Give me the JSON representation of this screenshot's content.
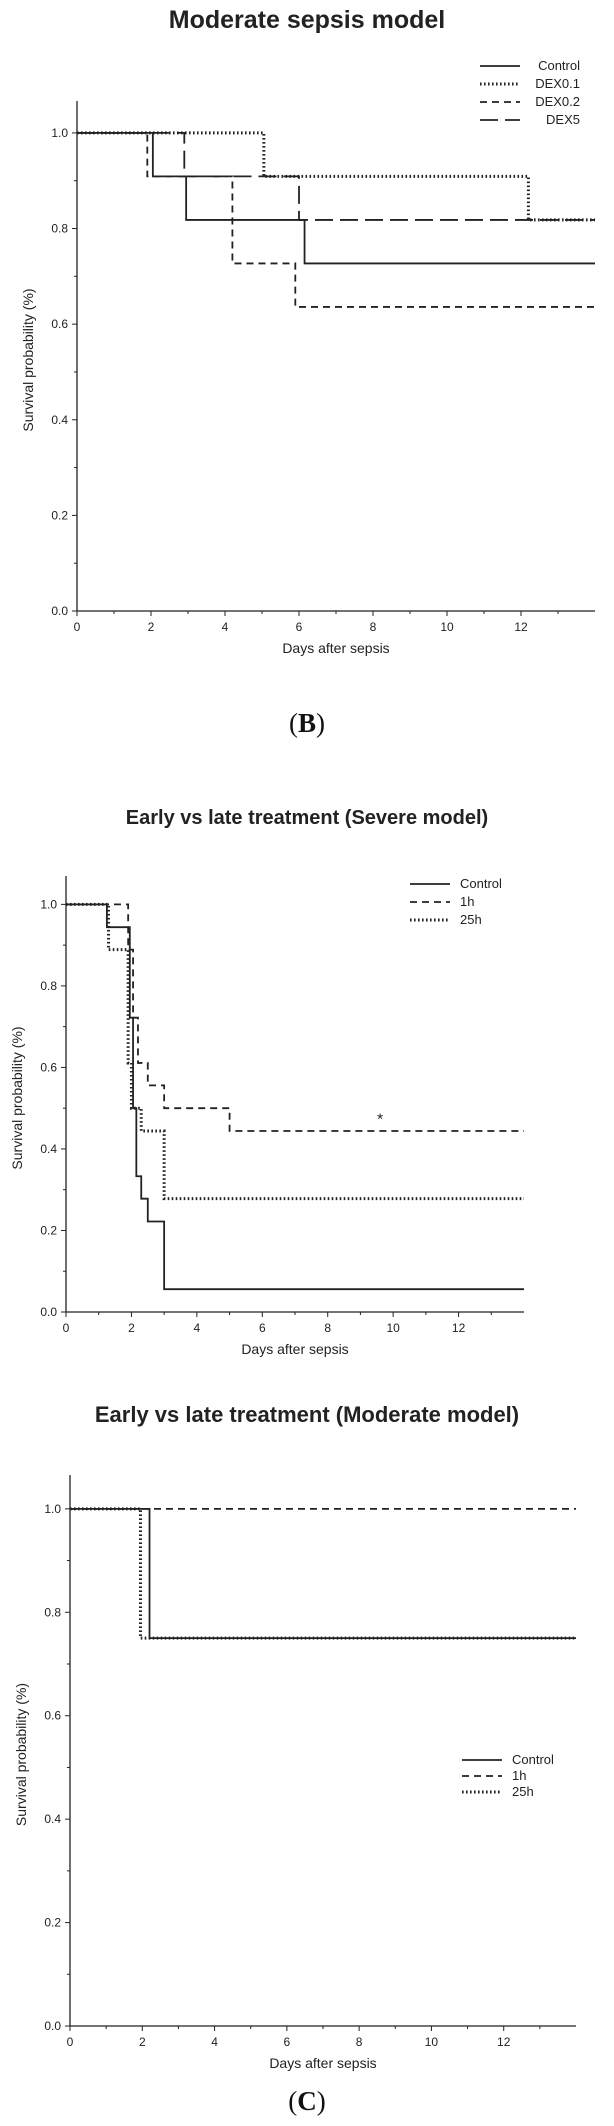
{
  "chart_data": [
    {
      "type": "line",
      "step": true,
      "title": "Moderate sepsis model",
      "xlabel": "Days after sepsis",
      "ylabel": "Survival probability (%)",
      "xlim": [
        0,
        14
      ],
      "ylim": [
        0,
        1.05
      ],
      "xticks": [
        "0",
        "2",
        "4",
        "6",
        "8",
        "10",
        "12"
      ],
      "yticks": [
        "0.0",
        "0.2",
        "0.4",
        "0.6",
        "0.8",
        "1.0"
      ],
      "legend_position": "top-right",
      "annotations": [],
      "series": [
        {
          "name": "Control",
          "style": "solid",
          "x": [
            0,
            2.05,
            2.95,
            6.15,
            14
          ],
          "y": [
            1.0,
            0.909,
            0.818,
            0.727,
            0.727
          ]
        },
        {
          "name": "DEX0.1",
          "style": "dotted",
          "x": [
            0,
            5.05,
            12.2,
            14
          ],
          "y": [
            1.0,
            0.909,
            0.818,
            0.818
          ]
        },
        {
          "name": "DEX0.2",
          "style": "dashed",
          "x": [
            0,
            1.9,
            4.2,
            5.9,
            14
          ],
          "y": [
            1.0,
            0.909,
            0.727,
            0.636,
            0.636
          ]
        },
        {
          "name": "DEX5",
          "style": "longdash",
          "x": [
            0,
            2.9,
            5.1,
            6.0,
            14
          ],
          "y": [
            1.0,
            0.909,
            0.909,
            0.818,
            0.818
          ]
        }
      ]
    },
    {
      "type": "line",
      "step": true,
      "title": "Early vs late treatment (Severe model)",
      "xlabel": "Days after sepsis",
      "ylabel": "Survival probability (%)",
      "xlim": [
        0,
        14
      ],
      "ylim": [
        0,
        1.05
      ],
      "xticks": [
        "0",
        "2",
        "4",
        "6",
        "8",
        "10",
        "12"
      ],
      "yticks": [
        "0.0",
        "0.2",
        "0.4",
        "0.6",
        "0.8",
        "1.0"
      ],
      "legend_position": "top-right",
      "annotations": [
        {
          "text": "*",
          "x": 9.6,
          "y": 0.46
        }
      ],
      "series": [
        {
          "name": "Control",
          "style": "solid",
          "x": [
            0,
            1.25,
            1.95,
            2.05,
            2.15,
            2.3,
            2.5,
            3.0,
            14
          ],
          "y": [
            1.0,
            0.944,
            0.722,
            0.5,
            0.333,
            0.278,
            0.222,
            0.056,
            0.056
          ]
        },
        {
          "name": "1h",
          "style": "dashed",
          "x": [
            0,
            1.9,
            2.05,
            2.2,
            2.5,
            3.0,
            5.0,
            14
          ],
          "y": [
            1.0,
            0.889,
            0.722,
            0.611,
            0.556,
            0.5,
            0.444,
            0.444
          ]
        },
        {
          "name": "25h",
          "style": "dotted",
          "x": [
            0,
            1.3,
            1.9,
            2.0,
            2.3,
            3.0,
            14
          ],
          "y": [
            1.0,
            0.889,
            0.611,
            0.5,
            0.444,
            0.278,
            0.278
          ]
        }
      ]
    },
    {
      "type": "line",
      "step": true,
      "title": "Early vs late treatment (Moderate model)",
      "xlabel": "Days after sepsis",
      "ylabel": "Survival probability (%)",
      "xlim": [
        0,
        14
      ],
      "ylim": [
        0,
        1.05
      ],
      "xticks": [
        "0",
        "2",
        "4",
        "6",
        "8",
        "10",
        "12"
      ],
      "yticks": [
        "0.0",
        "0.2",
        "0.4",
        "0.6",
        "0.8",
        "1.0"
      ],
      "legend_position": "right",
      "annotations": [],
      "series": [
        {
          "name": "Control",
          "style": "solid",
          "x": [
            0,
            2.2,
            14
          ],
          "y": [
            1.0,
            0.75,
            0.75
          ]
        },
        {
          "name": "1h",
          "style": "dashed",
          "x": [
            0,
            14
          ],
          "y": [
            1.0,
            1.0
          ]
        },
        {
          "name": "25h",
          "style": "dotted",
          "x": [
            0,
            1.95,
            14
          ],
          "y": [
            1.0,
            0.75,
            0.75
          ]
        }
      ]
    }
  ],
  "panel_labels": {
    "b": "B",
    "c": "C"
  }
}
